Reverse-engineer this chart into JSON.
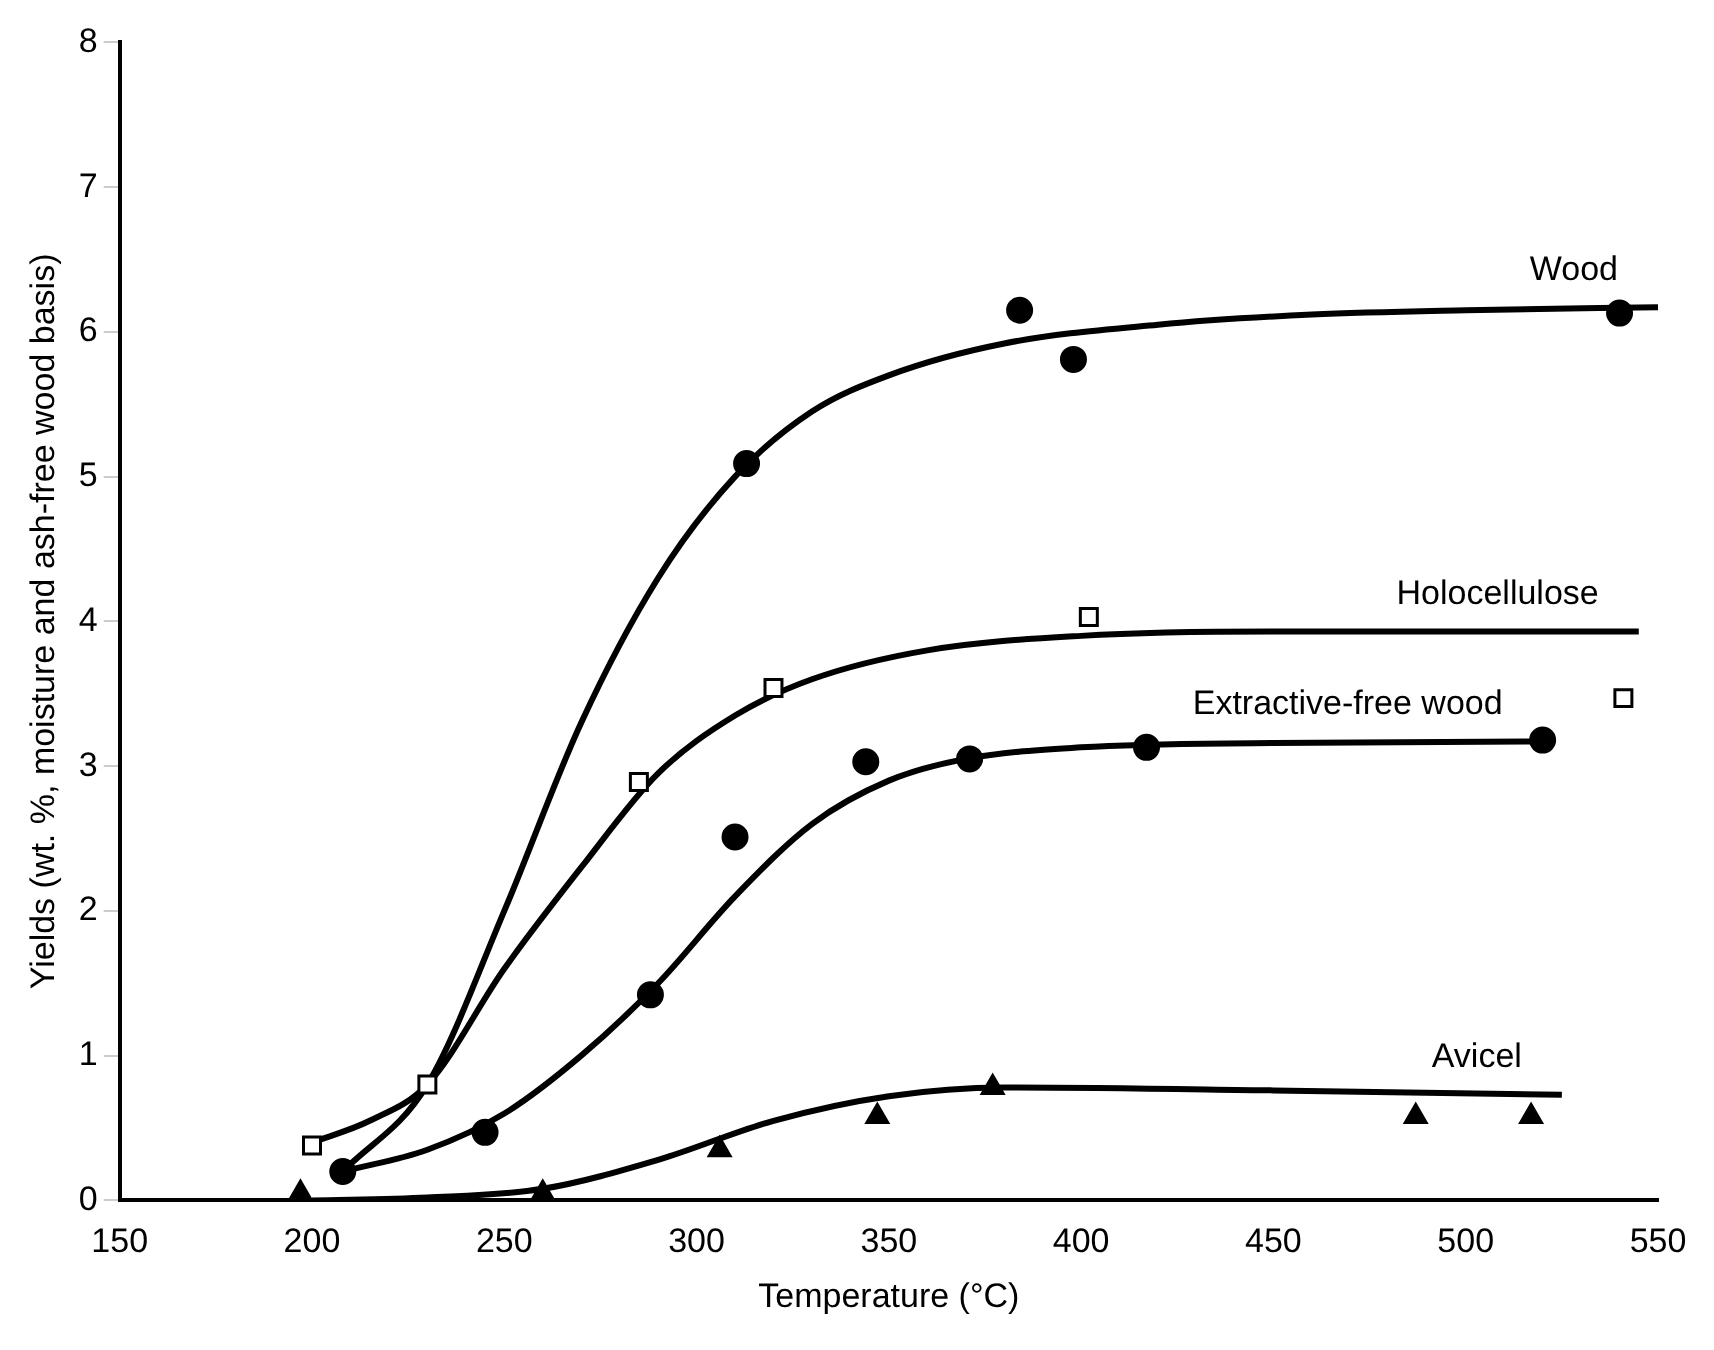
{
  "chart_data": {
    "type": "scatter",
    "xlabel": "Temperature (°C)",
    "ylabel": "Yields (wt. %, moisture and ash-free wood basis)",
    "xlim": [
      150,
      550
    ],
    "xticks": [
      150,
      200,
      250,
      300,
      350,
      400,
      450,
      500,
      550
    ],
    "ylim": [
      0,
      8
    ],
    "yticks": [
      0,
      1,
      2,
      3,
      4,
      5,
      6,
      7,
      8
    ],
    "grid": false,
    "legend": false,
    "series": [
      {
        "type": "scatter",
        "color": "#000000",
        "marker": "circle",
        "x": [
          208,
          288,
          313,
          384,
          398,
          540
        ],
        "values": [
          0.2,
          1.42,
          5.09,
          6.15,
          5.81,
          6.13
        ]
      },
      {
        "type": "scatter",
        "color": "#000000",
        "marker": "square",
        "x": [
          200,
          230,
          285,
          320,
          402,
          541
        ],
        "values": [
          0.38,
          0.8,
          2.89,
          3.54,
          4.03,
          3.47
        ]
      },
      {
        "type": "scatter",
        "color": "#000000",
        "marker": "circle",
        "x": [
          245,
          310,
          344,
          371,
          417,
          520
        ],
        "values": [
          0.47,
          2.51,
          3.03,
          3.05,
          3.13,
          3.18
        ]
      },
      {
        "type": "scatter",
        "color": "#000000",
        "marker": "triangle",
        "x": [
          197,
          260,
          306,
          347,
          377,
          487,
          517
        ],
        "values": [
          0.05,
          0.05,
          0.35,
          0.58,
          0.78,
          0.58,
          0.58
        ]
      },
      {
        "type": "line",
        "name": "Wood",
        "color": "#000000",
        "marker": "none",
        "x": [
          208,
          230,
          250,
          270,
          290,
          310,
          330,
          350,
          380,
          420,
          460,
          500,
          550
        ],
        "values": [
          0.2,
          0.8,
          2.0,
          3.3,
          4.3,
          5.0,
          5.45,
          5.7,
          5.92,
          6.05,
          6.12,
          6.15,
          6.17
        ]
      },
      {
        "type": "line",
        "name": "Holocellulose",
        "color": "#000000",
        "marker": "none",
        "x": [
          200,
          215,
          230,
          250,
          270,
          290,
          310,
          330,
          360,
          400,
          450,
          545
        ],
        "values": [
          0.4,
          0.55,
          0.8,
          1.6,
          2.3,
          2.95,
          3.35,
          3.6,
          3.8,
          3.9,
          3.93,
          3.93
        ]
      },
      {
        "type": "line",
        "name": "Extractive-free wood",
        "color": "#000000",
        "marker": "none",
        "x": [
          208,
          230,
          250,
          270,
          290,
          310,
          330,
          350,
          370,
          400,
          450,
          520
        ],
        "values": [
          0.2,
          0.35,
          0.6,
          1.0,
          1.5,
          2.1,
          2.6,
          2.9,
          3.05,
          3.13,
          3.16,
          3.17
        ]
      },
      {
        "type": "line",
        "name": "Avicel",
        "color": "#000000",
        "marker": "none",
        "x": [
          200,
          230,
          260,
          290,
          320,
          350,
          380,
          450,
          525
        ],
        "values": [
          0.0,
          0.02,
          0.08,
          0.28,
          0.55,
          0.72,
          0.78,
          0.76,
          0.73
        ]
      }
    ]
  }
}
